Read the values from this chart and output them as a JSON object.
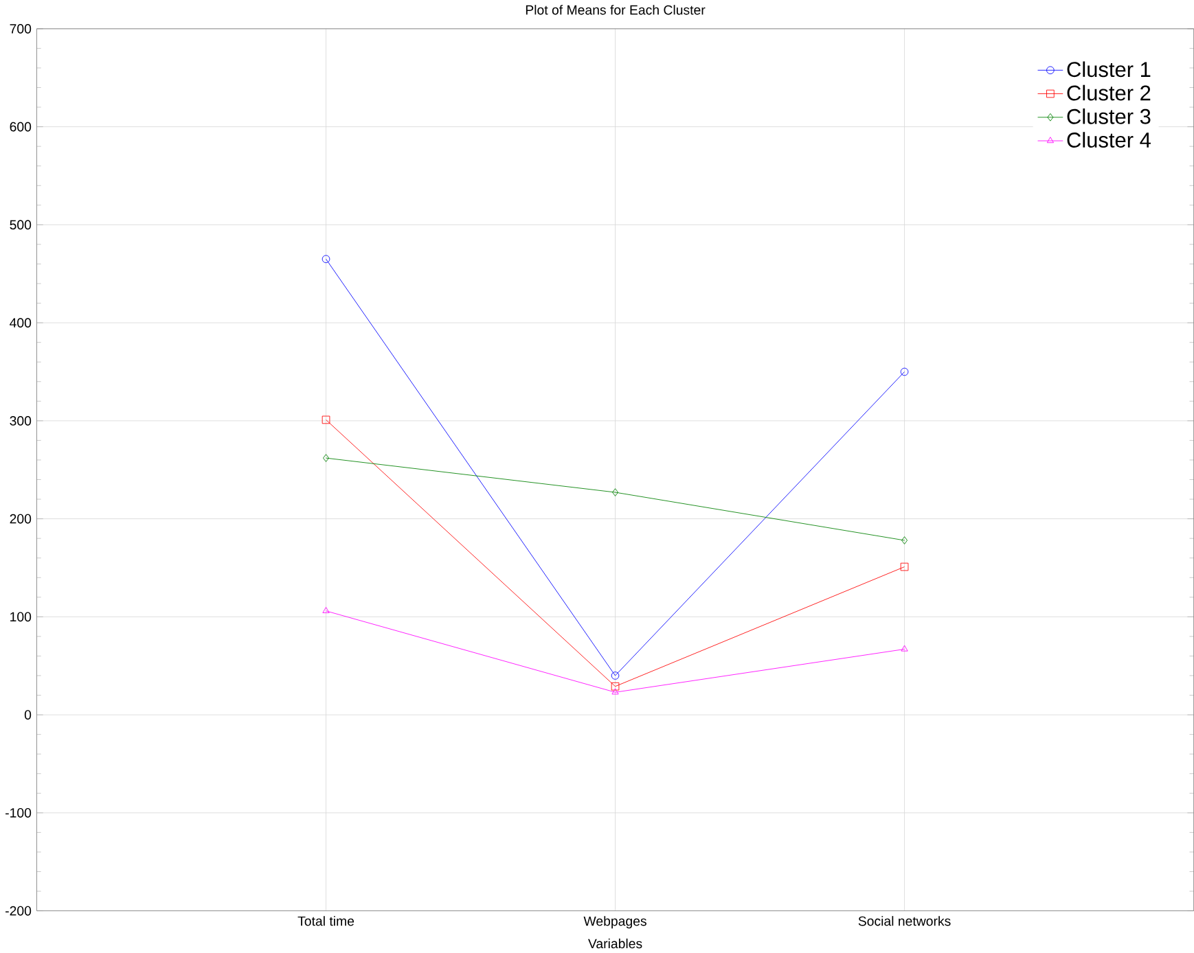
{
  "chart_data": {
    "type": "line",
    "title": "Plot of Means for Each Cluster",
    "xlabel": "Variables",
    "categories": [
      "Total time",
      "Webpages",
      "Social networks"
    ],
    "series": [
      {
        "name": "Cluster  1",
        "color": "#0000ff",
        "marker": "circle",
        "values": [
          465,
          40,
          350
        ]
      },
      {
        "name": "Cluster  2",
        "color": "#ff0000",
        "marker": "square",
        "values": [
          301,
          29,
          151
        ]
      },
      {
        "name": "Cluster  3",
        "color": "#008000",
        "marker": "diamond",
        "values": [
          262,
          227,
          178
        ]
      },
      {
        "name": "Cluster  4",
        "color": "#ff00ff",
        "marker": "triangle",
        "values": [
          106,
          23,
          67
        ]
      }
    ],
    "ylim": [
      -200,
      700
    ],
    "yticks": [
      -200,
      -100,
      0,
      100,
      200,
      300,
      400,
      500,
      600,
      700
    ],
    "grid": true,
    "legend": "top right"
  }
}
